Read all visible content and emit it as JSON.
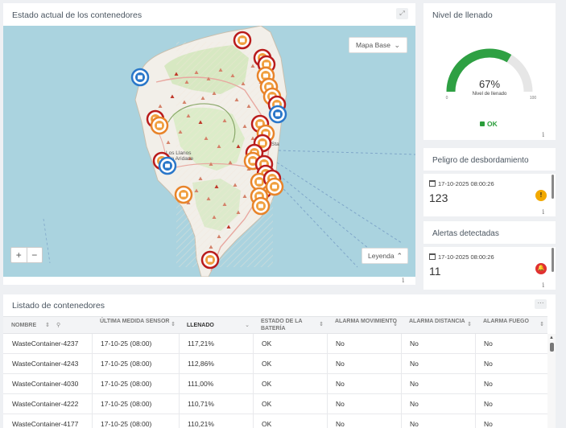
{
  "map_panel": {
    "title": "Estado actual de los contenedores",
    "basemap_label": "Mapa Base",
    "zoom_in": "+",
    "zoom_out": "−",
    "legend_label": "Leyenda",
    "place_label_1": "Los Llanos",
    "place_label_2": "de Aridane",
    "place_label_3": "Sta",
    "info": "i",
    "expand_icon": "expand-icon"
  },
  "gauge_panel": {
    "title": "Nivel de llenado",
    "value": 67,
    "value_text": "67%",
    "sublabel": "Nivel de llenado",
    "min": "0",
    "max": "100",
    "status": "OK",
    "info": "i",
    "colors": {
      "fill": "#2ea043",
      "track": "#e6e6e6",
      "status": "#2a9d3a"
    }
  },
  "overflow_card": {
    "title": "Peligro de desbordamiento",
    "date": "17-10-2025 08:00:26",
    "value": "123",
    "icon": "warning-triangle-icon",
    "icon_glyph": "!",
    "icon_color": "#f2a900",
    "info": "i"
  },
  "alerts_card": {
    "title": "Alertas detectadas",
    "date": "17-10-2025 08:00:26",
    "value": "11",
    "icon": "bell-alert-icon",
    "icon_glyph": "🔔",
    "icon_color": "#e03131",
    "info": "i"
  },
  "table": {
    "title": "Listado de contenedores",
    "more": "···",
    "columns": [
      {
        "label": "Nombre",
        "sort": "⇕",
        "search": "⚲"
      },
      {
        "label": "Última medida sensor",
        "sort": "⇕"
      },
      {
        "label": "Llenado",
        "sort": "⌄",
        "active": true
      },
      {
        "label": "Estado de la batería",
        "sort": "⇕"
      },
      {
        "label": "Alarma movimiento",
        "sort": "⇕"
      },
      {
        "label": "Alarma distancia",
        "sort": "⇕"
      },
      {
        "label": "Alarma fuego",
        "sort": "⇕"
      }
    ],
    "rows": [
      [
        "WasteContainer-4237",
        "17-10-25 (08:00)",
        "117,21%",
        "OK",
        "No",
        "No",
        "No"
      ],
      [
        "WasteContainer-4243",
        "17-10-25 (08:00)",
        "112,86%",
        "OK",
        "No",
        "No",
        "No"
      ],
      [
        "WasteContainer-4030",
        "17-10-25 (08:00)",
        "111,00%",
        "OK",
        "No",
        "No",
        "No"
      ],
      [
        "WasteContainer-4222",
        "17-10-25 (08:00)",
        "110,71%",
        "OK",
        "No",
        "No",
        "No"
      ],
      [
        "WasteContainer-4177",
        "17-10-25 (08:00)",
        "110,21%",
        "OK",
        "No",
        "No",
        "No"
      ]
    ],
    "scroll_up": "▲"
  }
}
